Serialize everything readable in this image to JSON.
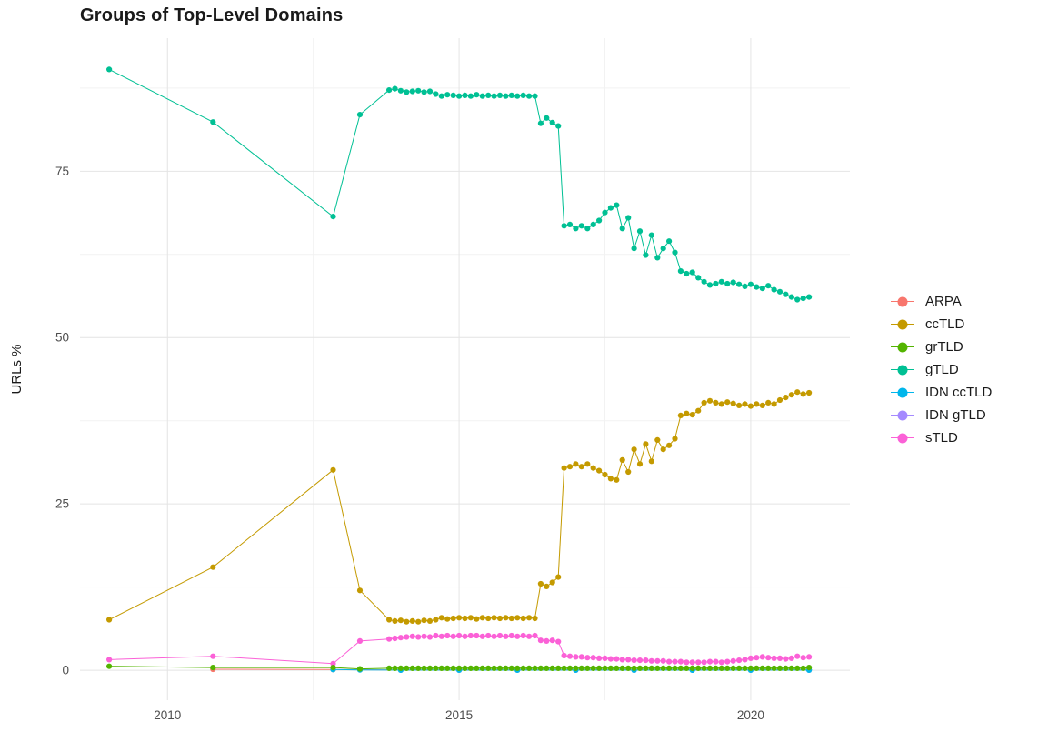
{
  "chart_data": {
    "type": "line",
    "title": "Groups of Top-Level Domains",
    "xlabel": "",
    "ylabel": "URLs %",
    "xlim": [
      2008.5,
      2021.7
    ],
    "ylim": [
      -4.5,
      95
    ],
    "xticks": [
      2010,
      2015,
      2020
    ],
    "xtick_labels": [
      "2010",
      "2015",
      "2020"
    ],
    "yticks": [
      0,
      25,
      50,
      75
    ],
    "ytick_labels": [
      "0",
      "25",
      "50",
      "75"
    ],
    "x_minor": [
      2012.5,
      2017.5
    ],
    "y_minor": [
      12.5,
      37.5,
      62.5,
      87.5
    ],
    "grid": true,
    "legend_position": "right",
    "x": [
      2009.0,
      2010.78,
      2012.84,
      2013.3,
      2013.8,
      2013.9,
      2014.0,
      2014.1,
      2014.2,
      2014.3,
      2014.4,
      2014.5,
      2014.6,
      2014.7,
      2014.8,
      2014.9,
      2015.0,
      2015.1,
      2015.2,
      2015.3,
      2015.4,
      2015.5,
      2015.6,
      2015.7,
      2015.8,
      2015.9,
      2016.0,
      2016.1,
      2016.2,
      2016.3,
      2016.4,
      2016.5,
      2016.6,
      2016.7,
      2016.8,
      2016.9,
      2017.0,
      2017.1,
      2017.2,
      2017.3,
      2017.4,
      2017.5,
      2017.6,
      2017.7,
      2017.8,
      2017.9,
      2018.0,
      2018.1,
      2018.2,
      2018.3,
      2018.4,
      2018.5,
      2018.6,
      2018.7,
      2018.8,
      2018.9,
      2019.0,
      2019.1,
      2019.2,
      2019.3,
      2019.4,
      2019.5,
      2019.6,
      2019.7,
      2019.8,
      2019.9,
      2020.0,
      2020.1,
      2020.2,
      2020.3,
      2020.4,
      2020.5,
      2020.6,
      2020.7,
      2020.8,
      2020.9,
      2021.0
    ],
    "series": [
      {
        "name": "ARPA",
        "color": "#F8766D",
        "x": [
          2010.78,
          2012.84,
          2013.3,
          2014.0,
          2015.0,
          2016.0,
          2017.0,
          2018.0,
          2019.0,
          2020.0,
          2021.0
        ],
        "values": [
          0.15,
          0.1,
          0.08,
          0.05,
          0.05,
          0.05,
          0.05,
          0.05,
          0.05,
          0.05,
          0.05
        ]
      },
      {
        "name": "ccTLD",
        "color": "#C49A00",
        "values": [
          7.6,
          15.5,
          30.1,
          12.0,
          7.6,
          7.4,
          7.5,
          7.3,
          7.4,
          7.3,
          7.5,
          7.4,
          7.6,
          7.9,
          7.7,
          7.8,
          7.9,
          7.8,
          7.9,
          7.7,
          7.9,
          7.8,
          7.9,
          7.8,
          7.9,
          7.8,
          7.9,
          7.8,
          7.9,
          7.8,
          13.0,
          12.6,
          13.2,
          14.0,
          30.4,
          30.6,
          31.0,
          30.6,
          31.0,
          30.4,
          30.0,
          29.4,
          28.8,
          28.6,
          31.6,
          29.8,
          33.2,
          31.0,
          34.0,
          31.4,
          34.6,
          33.2,
          33.8,
          34.8,
          38.3,
          38.6,
          38.4,
          39.0,
          40.2,
          40.5,
          40.2,
          40.0,
          40.3,
          40.1,
          39.8,
          40.0,
          39.7,
          40.0,
          39.8,
          40.2,
          40.0,
          40.6,
          41.0,
          41.4,
          41.8,
          41.5,
          41.7
        ]
      },
      {
        "name": "grTLD",
        "color": "#53B400",
        "values": [
          0.6,
          0.4,
          0.4,
          0.2,
          0.3,
          0.3,
          0.3,
          0.3,
          0.3,
          0.3,
          0.3,
          0.3,
          0.3,
          0.3,
          0.3,
          0.3,
          0.3,
          0.3,
          0.3,
          0.3,
          0.3,
          0.3,
          0.3,
          0.3,
          0.3,
          0.3,
          0.3,
          0.3,
          0.3,
          0.3,
          0.3,
          0.3,
          0.3,
          0.3,
          0.3,
          0.3,
          0.3,
          0.3,
          0.3,
          0.3,
          0.3,
          0.3,
          0.3,
          0.3,
          0.3,
          0.3,
          0.3,
          0.3,
          0.3,
          0.3,
          0.3,
          0.3,
          0.3,
          0.3,
          0.3,
          0.3,
          0.3,
          0.3,
          0.3,
          0.3,
          0.3,
          0.3,
          0.3,
          0.3,
          0.3,
          0.3,
          0.3,
          0.3,
          0.3,
          0.3,
          0.3,
          0.3,
          0.3,
          0.3,
          0.3,
          0.3,
          0.4
        ]
      },
      {
        "name": "gTLD",
        "color": "#00C094",
        "values": [
          90.3,
          82.4,
          68.2,
          83.5,
          87.2,
          87.4,
          87.1,
          86.9,
          87.0,
          87.1,
          86.9,
          87.0,
          86.6,
          86.3,
          86.5,
          86.4,
          86.3,
          86.4,
          86.3,
          86.5,
          86.3,
          86.4,
          86.3,
          86.4,
          86.3,
          86.4,
          86.3,
          86.4,
          86.3,
          86.3,
          82.2,
          83.0,
          82.3,
          81.8,
          66.8,
          67.0,
          66.4,
          66.8,
          66.4,
          67.0,
          67.6,
          68.8,
          69.5,
          69.9,
          66.4,
          68.0,
          63.4,
          66.0,
          62.4,
          65.4,
          62.0,
          63.4,
          64.5,
          62.8,
          60.0,
          59.6,
          59.8,
          59.0,
          58.4,
          57.9,
          58.1,
          58.4,
          58.1,
          58.3,
          58.0,
          57.7,
          58.0,
          57.6,
          57.4,
          57.8,
          57.2,
          56.9,
          56.5,
          56.1,
          55.7,
          55.9,
          56.1
        ]
      },
      {
        "name": "IDN ccTLD",
        "color": "#00B6EB",
        "x": [
          2012.84,
          2013.3,
          2014.0,
          2015.0,
          2016.0,
          2017.0,
          2018.0,
          2019.0,
          2020.0,
          2021.0
        ],
        "values": [
          0.1,
          0.05,
          0.03,
          0.03,
          0.03,
          0.03,
          0.03,
          0.03,
          0.03,
          0.03
        ]
      },
      {
        "name": "IDN gTLD",
        "color": "#A58AFF",
        "x": [
          2014.0,
          2015.0,
          2016.0,
          2017.0,
          2018.0,
          2019.0,
          2020.0,
          2021.0
        ],
        "values": [
          0.02,
          0.02,
          0.02,
          0.02,
          0.02,
          0.02,
          0.02,
          0.02
        ]
      },
      {
        "name": "sTLD",
        "color": "#FB61D7",
        "values": [
          1.6,
          2.1,
          1.0,
          4.4,
          4.7,
          4.8,
          4.9,
          5.0,
          5.1,
          5.0,
          5.1,
          5.0,
          5.2,
          5.1,
          5.2,
          5.1,
          5.2,
          5.1,
          5.2,
          5.2,
          5.1,
          5.2,
          5.1,
          5.2,
          5.1,
          5.2,
          5.1,
          5.2,
          5.1,
          5.2,
          4.5,
          4.4,
          4.5,
          4.3,
          2.2,
          2.1,
          2.0,
          2.0,
          1.9,
          1.9,
          1.8,
          1.8,
          1.7,
          1.7,
          1.6,
          1.6,
          1.5,
          1.5,
          1.5,
          1.4,
          1.4,
          1.4,
          1.3,
          1.3,
          1.3,
          1.2,
          1.2,
          1.2,
          1.2,
          1.3,
          1.3,
          1.2,
          1.3,
          1.4,
          1.5,
          1.6,
          1.8,
          1.9,
          2.0,
          1.9,
          1.8,
          1.8,
          1.7,
          1.8,
          2.1,
          1.9,
          2.0
        ]
      }
    ]
  }
}
